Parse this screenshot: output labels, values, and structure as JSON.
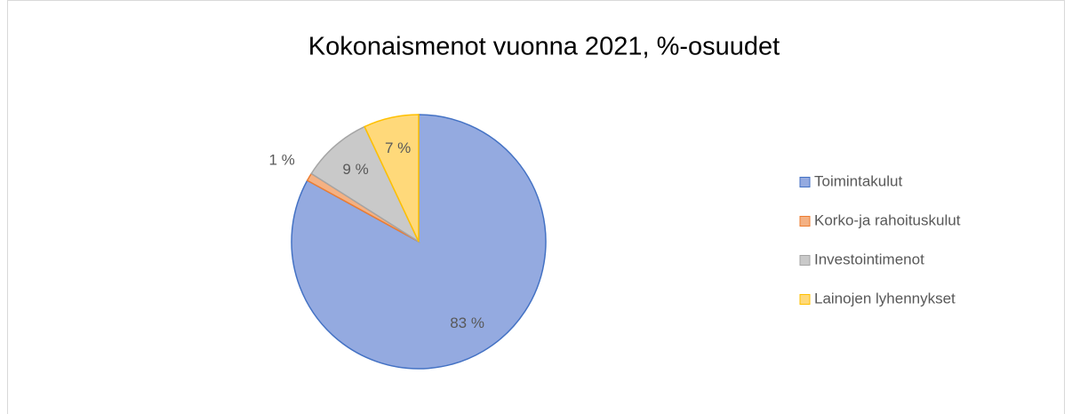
{
  "chart_data": {
    "type": "pie",
    "title": "Kokonaismenot vuonna 2021, %-osuudet",
    "categories": [
      "Toimintakulut",
      "Korko-ja rahoituskulut",
      "Investointimenot",
      "Lainojen lyhennykset"
    ],
    "values": [
      83,
      1,
      9,
      7
    ],
    "value_labels": [
      "83 %",
      "1 %",
      "9 %",
      "7 %"
    ],
    "colors": [
      "#94aae0",
      "#f4b183",
      "#c9c9c9",
      "#ffd97a"
    ],
    "legend": "right"
  }
}
